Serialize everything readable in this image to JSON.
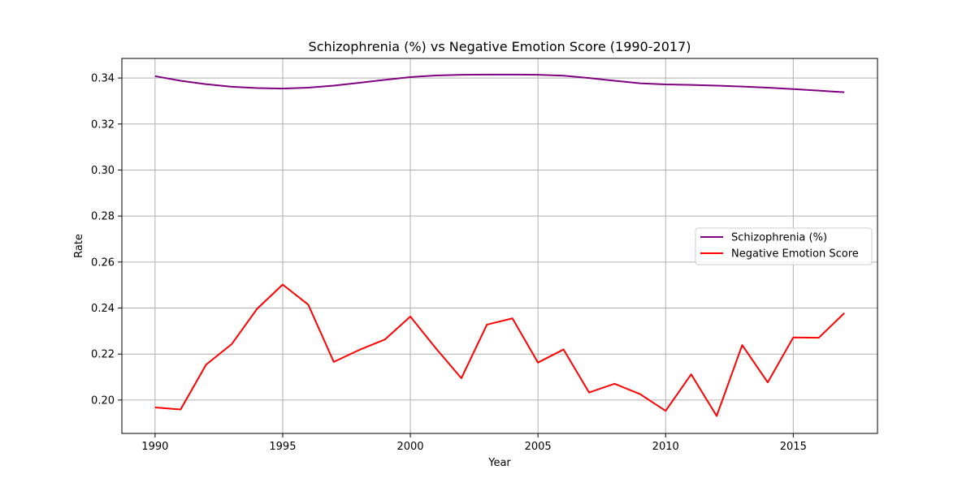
{
  "chart_data": {
    "type": "line",
    "title": "Schizophrenia (%) vs Negative Emotion Score (1990-2017)",
    "xlabel": "Year",
    "ylabel": "Rate",
    "xlim": [
      1988.7,
      2018.3
    ],
    "ylim": [
      0.1855,
      0.3485
    ],
    "x_ticks": [
      1990,
      1995,
      2000,
      2005,
      2010,
      2015
    ],
    "y_ticks": [
      0.2,
      0.22,
      0.24,
      0.26,
      0.28,
      0.3,
      0.32,
      0.34
    ],
    "y_tick_labels": [
      "0.20",
      "0.22",
      "0.24",
      "0.26",
      "0.28",
      "0.30",
      "0.32",
      "0.34"
    ],
    "grid": true,
    "legend_position": "center-right",
    "x": [
      1990,
      1991,
      1992,
      1993,
      1994,
      1995,
      1996,
      1997,
      1998,
      1999,
      2000,
      2001,
      2002,
      2003,
      2004,
      2005,
      2006,
      2007,
      2008,
      2009,
      2010,
      2011,
      2012,
      2013,
      2014,
      2015,
      2016,
      2017
    ],
    "series": [
      {
        "name": "Schizophrenia (%)",
        "color": "#800080",
        "values": [
          0.3408,
          0.3388,
          0.3373,
          0.3362,
          0.3356,
          0.3354,
          0.3358,
          0.3367,
          0.3379,
          0.3392,
          0.3404,
          0.3411,
          0.3414,
          0.3415,
          0.3415,
          0.3414,
          0.341,
          0.34,
          0.3388,
          0.3377,
          0.3372,
          0.337,
          0.3367,
          0.3363,
          0.3358,
          0.3352,
          0.3345,
          0.3338
        ]
      },
      {
        "name": "Negative Emotion Score",
        "color": "#ff0000",
        "values": [
          0.1968,
          0.1959,
          0.2154,
          0.2243,
          0.2397,
          0.2502,
          0.2415,
          0.2166,
          0.2218,
          0.2263,
          0.2363,
          0.2225,
          0.2095,
          0.2328,
          0.2355,
          0.2163,
          0.222,
          0.2033,
          0.2071,
          0.2026,
          0.1953,
          0.2112,
          0.1931,
          0.2239,
          0.2077,
          0.2272,
          0.2271,
          0.2378
        ]
      }
    ]
  }
}
